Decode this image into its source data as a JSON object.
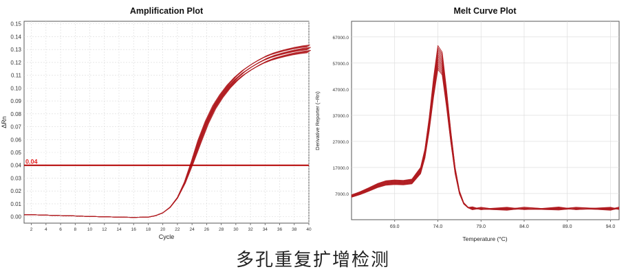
{
  "caption": "多孔重复扩增检测",
  "colors": {
    "curve": "#b01c20",
    "threshold": "#b40000",
    "threshold_label": "#e41e1e",
    "grid": "#d9d9d9",
    "axis": "#555555"
  },
  "chart_data": [
    {
      "type": "line",
      "title": "Amplification Plot",
      "xlabel": "Cycle",
      "ylabel": "ΔRn",
      "xlim": [
        1,
        40
      ],
      "ylim": [
        -0.005,
        0.152
      ],
      "xticks": [
        "2",
        "4",
        "6",
        "8",
        "10",
        "12",
        "14",
        "16",
        "18",
        "20",
        "22",
        "24",
        "26",
        "28",
        "30",
        "32",
        "34",
        "36",
        "38",
        "40"
      ],
      "yticks": [
        "0.00",
        "0.01",
        "0.02",
        "0.03",
        "0.04",
        "0.05",
        "0.06",
        "0.07",
        "0.08",
        "0.09",
        "0.10",
        "0.11",
        "0.12",
        "0.13",
        "0.14",
        "0.15"
      ],
      "grid": true,
      "threshold": {
        "value": 0.04,
        "label": "0.04"
      },
      "replicates": 14,
      "x": [
        1,
        2,
        4,
        6,
        8,
        10,
        12,
        14,
        16,
        18,
        19,
        20,
        21,
        22,
        23,
        24,
        25,
        26,
        27,
        28,
        29,
        30,
        31,
        32,
        33,
        34,
        35,
        36,
        37,
        38,
        39,
        40
      ],
      "series": [
        {
          "values": [
            0.0015,
            0.0015,
            0.0012,
            0.0009,
            0.0006,
            0.0002,
            -0.0001,
            -0.0003,
            -0.0005,
            -0.0003,
            0.0008,
            0.003,
            0.0075,
            0.015,
            0.027,
            0.043,
            0.06,
            0.075,
            0.087,
            0.096,
            0.1035,
            0.1095,
            0.1145,
            0.1185,
            0.122,
            0.125,
            0.1273,
            0.129,
            0.1305,
            0.1318,
            0.1328,
            0.1335
          ]
        }
      ]
    },
    {
      "type": "line",
      "title": "Melt Curve Plot",
      "xlabel": "Temperature (°C)",
      "ylabel": "Derivative Reporter (−Rn)",
      "xlim": [
        64,
        95
      ],
      "ylim": [
        -3000,
        73000
      ],
      "xticks": [
        "69.0",
        "74.0",
        "79.0",
        "84.0",
        "89.0",
        "94.0"
      ],
      "yticks": [
        "7000.0",
        "17000.0",
        "27000.0",
        "37000.0",
        "47000.0",
        "57000.0",
        "67000.0"
      ],
      "grid": true,
      "replicates": 14,
      "x": [
        64,
        65,
        66,
        67,
        68,
        69,
        70,
        71,
        72,
        72.5,
        73,
        73.5,
        74,
        74.5,
        75,
        75.5,
        76,
        76.5,
        77,
        77.5,
        78,
        79,
        80,
        82,
        84,
        86,
        88,
        90,
        92,
        94,
        95
      ],
      "series": [
        {
          "values": [
            6500,
            7700,
            9200,
            10800,
            11900,
            12200,
            12000,
            12500,
            17000,
            24000,
            36000,
            51000,
            63500,
            61000,
            47000,
            31000,
            17000,
            8000,
            3500,
            1800,
            1200,
            1000,
            950,
            1000,
            1050,
            950,
            1100,
            1000,
            1050,
            1000,
            1100
          ]
        }
      ]
    }
  ]
}
